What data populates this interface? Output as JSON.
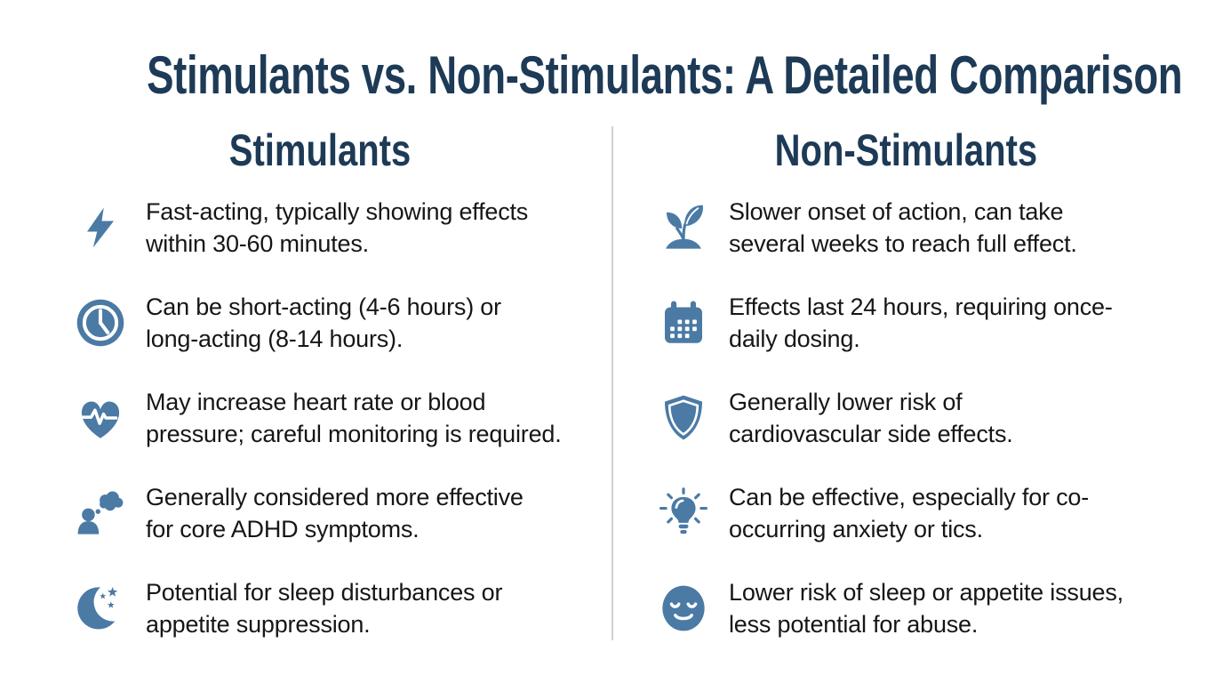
{
  "page": {
    "title": "Stimulants vs. Non-Stimulants: A Detailed Comparison",
    "colors": {
      "accent": "#4b7aa5",
      "heading": "#1d3a56",
      "body": "#161616",
      "divider": "#d0d0d0",
      "background": "#ffffff"
    }
  },
  "columns": [
    {
      "header": "Stimulants",
      "items": [
        {
          "icon": "lightning-bolt-icon",
          "lines": [
            "Fast-acting, typically showing effects",
            "within 30-60 minutes."
          ]
        },
        {
          "icon": "clock-icon",
          "lines": [
            "Can be short-acting (4-6 hours) or",
            "long-acting (8-14 hours)."
          ]
        },
        {
          "icon": "heart-pulse-icon",
          "lines": [
            "May increase heart rate or blood",
            "pressure; careful monitoring is required."
          ]
        },
        {
          "icon": "person-thought-icon",
          "lines": [
            "Generally considered more effective",
            "for core ADHD symptoms."
          ]
        },
        {
          "icon": "moon-stars-icon",
          "lines": [
            "Potential for sleep disturbances or",
            "appetite suppression."
          ]
        }
      ]
    },
    {
      "header": "Non-Stimulants",
      "items": [
        {
          "icon": "seedling-icon",
          "lines": [
            "Slower onset of action, can take",
            "several weeks to reach full effect."
          ]
        },
        {
          "icon": "calendar-icon",
          "lines": [
            "Effects last 24 hours, requiring once-",
            "daily dosing."
          ]
        },
        {
          "icon": "shield-icon",
          "lines": [
            "Generally lower risk of",
            "cardiovascular side effects."
          ]
        },
        {
          "icon": "lightbulb-icon",
          "lines": [
            "Can be effective, especially for co-",
            "occurring anxiety or tics."
          ]
        },
        {
          "icon": "calm-face-icon",
          "lines": [
            "Lower risk of sleep or appetite issues,",
            "less potential for abuse."
          ]
        }
      ]
    }
  ]
}
